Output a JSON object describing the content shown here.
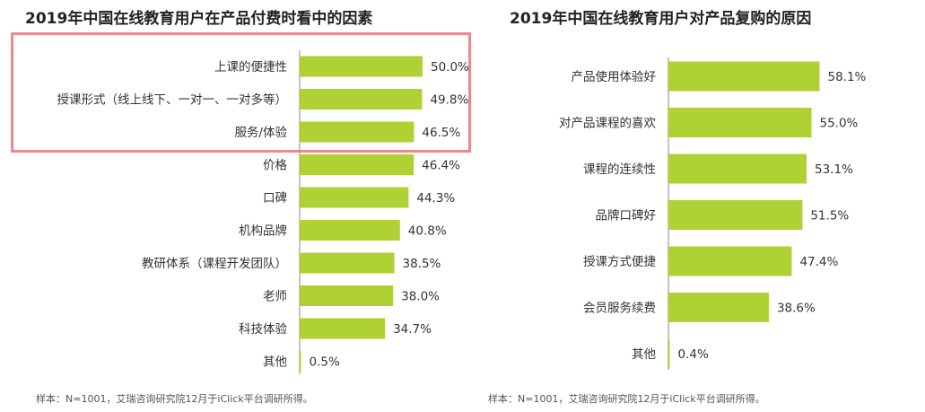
{
  "colors": {
    "bar": "#b0d133",
    "axis": "#888888",
    "highlight": "#e8898d"
  },
  "chart_data": [
    {
      "type": "bar",
      "orientation": "horizontal",
      "title": "2019年中国在线教育用户在产品付费时看中的因素",
      "categories": [
        "上课的便捷性",
        "授课形式（线上线下、一对一、一对多等）",
        "服务/体验",
        "价格",
        "口碑",
        "机构品牌",
        "教研体系（课程开发团队）",
        "老师",
        "科技体验",
        "其他"
      ],
      "values": [
        50.0,
        49.8,
        46.5,
        46.4,
        44.3,
        40.8,
        38.5,
        38.0,
        34.7,
        0.5
      ],
      "value_labels": [
        "50.0%",
        "49.8%",
        "46.5%",
        "46.4%",
        "44.3%",
        "40.8%",
        "38.5%",
        "38.0%",
        "34.7%",
        "0.5%"
      ],
      "highlighted_categories": [
        "上课的便捷性",
        "授课形式（线上线下、一对一、一对多等）",
        "服务/体验"
      ],
      "footnote": "样本：N=1001，艾瑞咨询研究院12月于iClick平台调研所得。"
    },
    {
      "type": "bar",
      "orientation": "horizontal",
      "title": "2019年中国在线教育用户对产品复购的原因",
      "categories": [
        "产品使用体验好",
        "对产品课程的喜欢",
        "课程的连续性",
        "品牌口碑好",
        "授课方式便捷",
        "会员服务续费",
        "其他"
      ],
      "values": [
        58.1,
        55.0,
        53.1,
        51.5,
        47.4,
        38.6,
        0.4
      ],
      "value_labels": [
        "58.1%",
        "55.0%",
        "53.1%",
        "51.5%",
        "47.4%",
        "38.6%",
        "0.4%"
      ],
      "footnote": "样本：N=1001，艾瑞咨询研究院12月于iClick平台调研所得。"
    }
  ]
}
